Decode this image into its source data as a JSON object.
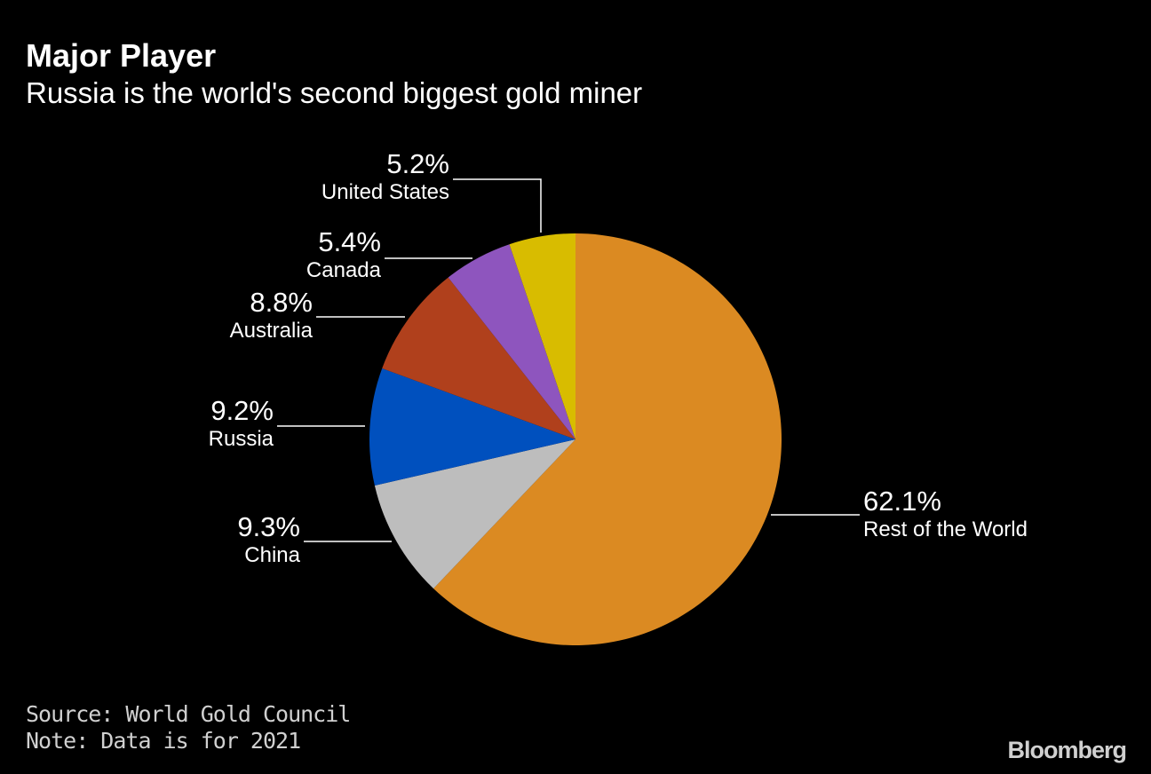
{
  "chart_data": {
    "type": "pie",
    "title": "Major Player",
    "subtitle": "Russia is the world's second biggest gold miner",
    "start_angle": "12 o'clock",
    "direction": "clockwise",
    "slices": [
      {
        "label": "Rest of the World",
        "value": 62.1,
        "display": "62.1%",
        "color": "#DB8A22"
      },
      {
        "label": "China",
        "value": 9.3,
        "display": "9.3%",
        "color": "#BDBDBD"
      },
      {
        "label": "Russia",
        "value": 9.2,
        "display": "9.2%",
        "color": "#0050BE"
      },
      {
        "label": "Australia",
        "value": 8.8,
        "display": "8.8%",
        "color": "#B0401C"
      },
      {
        "label": "Canada",
        "value": 5.4,
        "display": "5.4%",
        "color": "#8E55BE"
      },
      {
        "label": "United States",
        "value": 5.2,
        "display": "5.2%",
        "color": "#D8BC00"
      }
    ],
    "source": "Source: World Gold Council",
    "note": "Note: Data is for 2021"
  },
  "branding": {
    "logo": "Bloomberg"
  }
}
